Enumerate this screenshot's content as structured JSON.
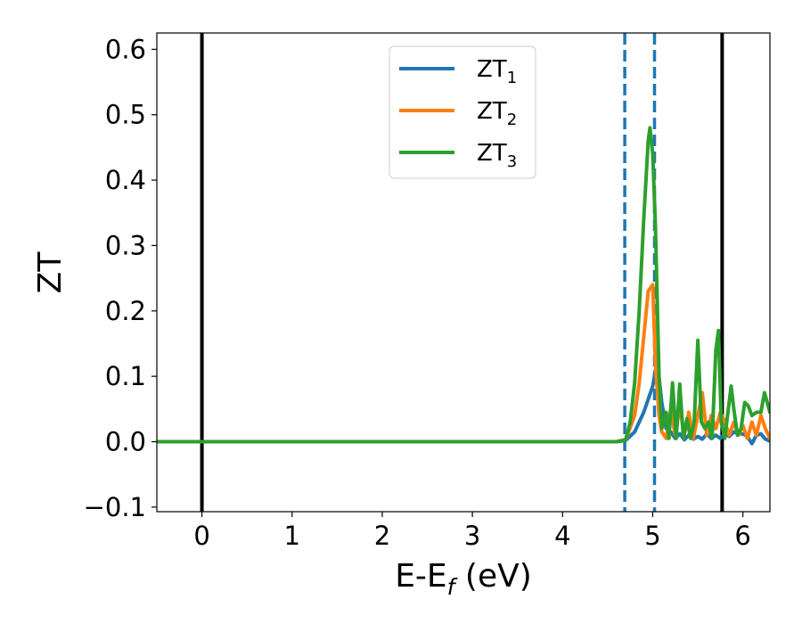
{
  "chart_data": {
    "type": "line",
    "xlabel": "E-E",
    "xlabel_sub": "f",
    "xlabel_unit": " (eV)",
    "ylabel": "ZT",
    "xlim": [
      -0.5,
      6.3
    ],
    "ylim": [
      -0.107,
      0.625
    ],
    "xticks": [
      0,
      1,
      2,
      3,
      4,
      5,
      6
    ],
    "xtick_labels": [
      "0",
      "1",
      "2",
      "3",
      "4",
      "5",
      "6"
    ],
    "yticks": [
      -0.1,
      0.0,
      0.1,
      0.2,
      0.3,
      0.4,
      0.5,
      0.6
    ],
    "ytick_labels": [
      "−0.1",
      "0.0",
      "0.1",
      "0.2",
      "0.3",
      "0.4",
      "0.5",
      "0.6"
    ],
    "grid": false,
    "legend_position": "top-center",
    "vlines": [
      {
        "x": 0.0,
        "style": "solid",
        "color": "#000000"
      },
      {
        "x": 5.77,
        "style": "solid",
        "color": "#000000"
      },
      {
        "x": 4.69,
        "style": "dashed",
        "color": "#1f77b4"
      },
      {
        "x": 5.02,
        "style": "dashed",
        "color": "#1f77b4"
      }
    ],
    "series": [
      {
        "name": "ZT",
        "sub": "1",
        "color": "#1f77b4",
        "x": [
          -0.5,
          4.6,
          4.7,
          4.8,
          4.9,
          5.0,
          5.05,
          5.1,
          5.15,
          5.2,
          5.25,
          5.3,
          5.35,
          5.4,
          5.45,
          5.5,
          5.55,
          5.6,
          5.65,
          5.7,
          5.75,
          5.8,
          5.85,
          5.9,
          5.95,
          6.0,
          6.05,
          6.1,
          6.15,
          6.2,
          6.25,
          6.3
        ],
        "y": [
          0.0,
          0.0,
          0.002,
          0.015,
          0.045,
          0.085,
          0.125,
          0.06,
          0.02,
          0.015,
          0.005,
          0.012,
          0.003,
          0.01,
          0.004,
          0.008,
          0.004,
          0.012,
          0.005,
          0.01,
          0.005,
          0.012,
          0.008,
          0.015,
          0.012,
          0.012,
          0.008,
          -0.003,
          0.01,
          0.012,
          0.004,
          0.001
        ]
      },
      {
        "name": "ZT",
        "sub": "2",
        "color": "#ff7f0e",
        "x": [
          -0.5,
          4.6,
          4.7,
          4.8,
          4.85,
          4.9,
          4.95,
          5.0,
          5.03,
          5.07,
          5.1,
          5.15,
          5.2,
          5.25,
          5.3,
          5.35,
          5.4,
          5.45,
          5.5,
          5.55,
          5.6,
          5.65,
          5.7,
          5.75,
          5.8,
          5.85,
          5.9,
          5.95,
          6.0,
          6.05,
          6.1,
          6.15,
          6.2,
          6.25,
          6.3
        ],
        "y": [
          0.0,
          0.0,
          0.003,
          0.04,
          0.09,
          0.16,
          0.23,
          0.24,
          0.12,
          0.04,
          0.015,
          0.005,
          0.05,
          0.01,
          0.055,
          0.01,
          0.045,
          0.005,
          0.04,
          0.075,
          0.01,
          0.04,
          0.02,
          0.045,
          0.03,
          0.01,
          0.03,
          0.01,
          0.025,
          0.005,
          0.03,
          0.01,
          0.04,
          0.02,
          0.005
        ]
      },
      {
        "name": "ZT",
        "sub": "3",
        "color": "#2ca02c",
        "x": [
          -0.5,
          4.6,
          4.7,
          4.75,
          4.8,
          4.85,
          4.9,
          4.95,
          4.97,
          5.0,
          5.03,
          5.07,
          5.1,
          5.15,
          5.18,
          5.22,
          5.26,
          5.3,
          5.34,
          5.38,
          5.42,
          5.46,
          5.5,
          5.54,
          5.58,
          5.62,
          5.66,
          5.7,
          5.73,
          5.76,
          5.8,
          5.83,
          5.87,
          5.9,
          5.94,
          5.98,
          6.02,
          6.06,
          6.1,
          6.15,
          6.2,
          6.24,
          6.27,
          6.3
        ],
        "y": [
          0.0,
          0.0,
          0.003,
          0.03,
          0.09,
          0.2,
          0.34,
          0.46,
          0.48,
          0.44,
          0.33,
          0.1,
          0.02,
          0.045,
          0.005,
          0.09,
          0.005,
          0.088,
          0.005,
          0.035,
          0.005,
          0.03,
          0.155,
          0.03,
          0.02,
          0.03,
          0.005,
          0.14,
          0.17,
          0.03,
          0.005,
          0.04,
          0.085,
          0.05,
          0.01,
          0.02,
          0.06,
          0.055,
          0.04,
          0.045,
          0.045,
          0.075,
          0.06,
          0.045
        ]
      }
    ]
  }
}
